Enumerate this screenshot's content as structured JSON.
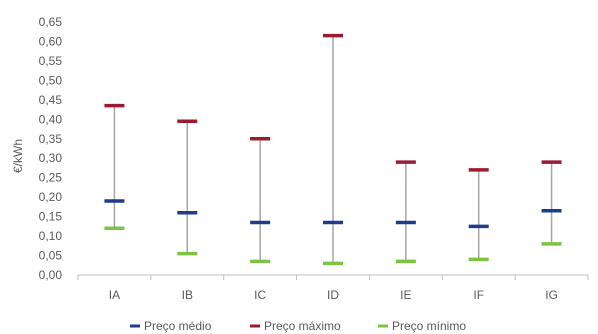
{
  "chart_data": {
    "type": "range",
    "ylabel": "€/kWh",
    "xlabel": "",
    "ylim": [
      0,
      0.65
    ],
    "ytick_step": 0.05,
    "ytick_labels": [
      "0,00",
      "0,05",
      "0,10",
      "0,15",
      "0,20",
      "0,25",
      "0,30",
      "0,35",
      "0,40",
      "0,45",
      "0,50",
      "0,55",
      "0,60",
      "0,65"
    ],
    "grid": false,
    "legend_position": "bottom",
    "categories": [
      "IA",
      "IB",
      "IC",
      "ID",
      "IE",
      "IF",
      "IG"
    ],
    "series": [
      {
        "name": "Preço médio",
        "color": "#1f3c88",
        "values": [
          0.19,
          0.16,
          0.135,
          0.135,
          0.135,
          0.125,
          0.165
        ]
      },
      {
        "name": "Preço máximo",
        "color": "#9b1b30",
        "values": [
          0.435,
          0.395,
          0.35,
          0.615,
          0.29,
          0.27,
          0.29
        ]
      },
      {
        "name": "Preço mínimo",
        "color": "#7dc242",
        "values": [
          0.12,
          0.055,
          0.035,
          0.03,
          0.035,
          0.04,
          0.08
        ]
      }
    ],
    "range_line_color": "#a6a6a6",
    "axis_color": "#bfbfbf"
  }
}
